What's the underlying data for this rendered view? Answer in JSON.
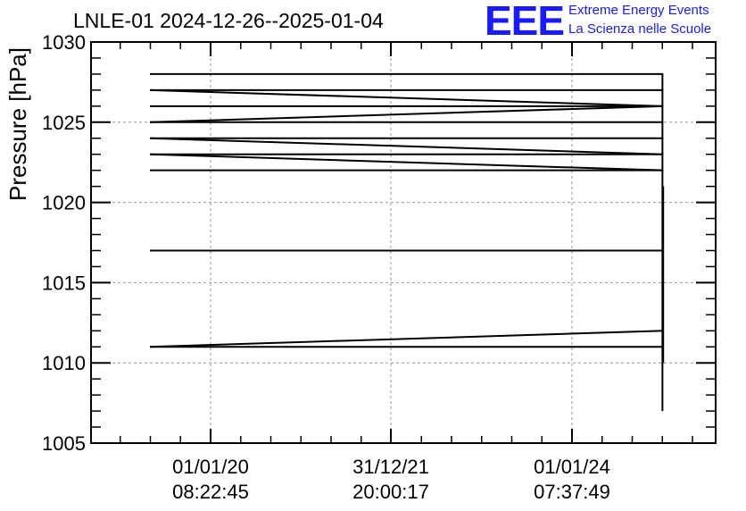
{
  "header": {
    "title": "LNLE-01 2024-12-26--2025-01-04",
    "logo": "EEE",
    "org_line1": "Extreme Energy Events",
    "org_line2": "La Scienza nelle Scuole"
  },
  "chart_data": {
    "type": "line",
    "title": "LNLE-01 2024-12-26--2025-01-04",
    "xlabel": "",
    "ylabel": "Pressure [hPa]",
    "ylim": [
      1005,
      1030
    ],
    "yticks": [
      1005,
      1010,
      1015,
      1020,
      1025,
      1030
    ],
    "xticks": [
      {
        "line1": "01/01/20",
        "line2": "08:22:45"
      },
      {
        "line1": "31/12/21",
        "line2": "20:00:17"
      },
      {
        "line1": "01/01/24",
        "line2": "07:37:49"
      }
    ],
    "grid": true,
    "color": "#000000",
    "segments": [
      {
        "x": [
          "2019-05-01",
          "2025-01-04"
        ],
        "y": [
          1028,
          1028
        ]
      },
      {
        "x": [
          "2019-05-01",
          "2025-01-04"
        ],
        "y": [
          1027,
          1026
        ]
      },
      {
        "x": [
          "2019-05-01",
          "2025-01-04"
        ],
        "y": [
          1027,
          1027
        ]
      },
      {
        "x": [
          "2019-05-01",
          "2025-01-04"
        ],
        "y": [
          1026,
          1026
        ]
      },
      {
        "x": [
          "2019-05-01",
          "2025-01-04"
        ],
        "y": [
          1025,
          1026
        ]
      },
      {
        "x": [
          "2019-05-01",
          "2025-01-04"
        ],
        "y": [
          1025,
          1025
        ]
      },
      {
        "x": [
          "2019-05-01",
          "2025-01-04"
        ],
        "y": [
          1024,
          1023
        ]
      },
      {
        "x": [
          "2019-05-01",
          "2025-01-04"
        ],
        "y": [
          1024,
          1024
        ]
      },
      {
        "x": [
          "2019-05-01",
          "2025-01-04"
        ],
        "y": [
          1023,
          1022
        ]
      },
      {
        "x": [
          "2019-05-01",
          "2025-01-04"
        ],
        "y": [
          1023,
          1023
        ]
      },
      {
        "x": [
          "2019-05-01",
          "2025-01-04"
        ],
        "y": [
          1022,
          1022
        ]
      },
      {
        "x": [
          "2019-05-01",
          "2025-01-04"
        ],
        "y": [
          1017,
          1017
        ]
      },
      {
        "x": [
          "2019-05-01",
          "2025-01-04"
        ],
        "y": [
          1011,
          1012
        ]
      },
      {
        "x": [
          "2019-05-01",
          "2025-01-04"
        ],
        "y": [
          1011,
          1011
        ]
      },
      {
        "x": [
          "2025-01-01",
          "2025-01-01"
        ],
        "y": [
          1028,
          1007
        ]
      },
      {
        "x": [
          "2025-01-04",
          "2025-01-04"
        ],
        "y": [
          1021,
          1010
        ]
      }
    ]
  }
}
